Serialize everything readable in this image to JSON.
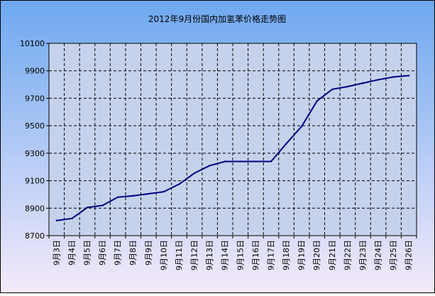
{
  "chart_data": {
    "type": "line",
    "title": "2012年9月份国内加氢苯价格走势图",
    "xlabel": "",
    "ylabel": "",
    "categories": [
      "9月3日",
      "9月4日",
      "9月5日",
      "9月6日",
      "9月7日",
      "9月8日",
      "9月9日",
      "9月10日",
      "9月11日",
      "9月12日",
      "9月13日",
      "9月14日",
      "9月15日",
      "9月16日",
      "9月17日",
      "9月18日",
      "9月19日",
      "9月20日",
      "9月21日",
      "9月22日",
      "9月23日",
      "9月24日",
      "9月25日",
      "9月26日"
    ],
    "y_ticks": [
      "8700",
      "8900",
      "9100",
      "9300",
      "9500",
      "9700",
      "9900",
      "10100"
    ],
    "ylim": [
      8700,
      10100
    ],
    "grid": true,
    "legend": "none",
    "series": [
      {
        "values": [
          8810,
          8825,
          8905,
          8920,
          8980,
          8990,
          9005,
          9020,
          9075,
          9155,
          9210,
          9240,
          9240,
          9240,
          9240,
          9370,
          9495,
          9680,
          9765,
          9785,
          9810,
          9835,
          9855,
          9865
        ],
        "color": "#000080"
      }
    ],
    "colors": {
      "background_top": "#6ea8f0",
      "background_bottom": "#f4eafa",
      "plot_area": "#c6d2ec",
      "line": "#000080",
      "grid": "#000000"
    }
  }
}
